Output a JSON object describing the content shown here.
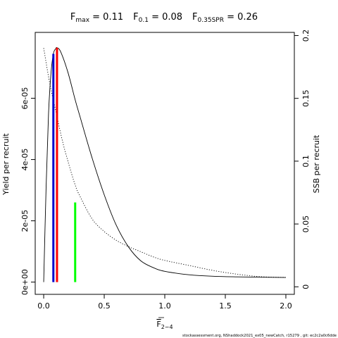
{
  "chart_data": {
    "type": "line",
    "title_parts": [
      {
        "base": "F",
        "sub": "max",
        "rest": " = 0.11"
      },
      {
        "base": "F",
        "sub": "0.1",
        "rest": " = 0.08"
      },
      {
        "base": "F",
        "sub": "0.35SPR",
        "rest": " = 0.26"
      }
    ],
    "xlabel": {
      "base": "F",
      "sub": "2−4",
      "overline": true
    },
    "ylabel_left": "Yield per recruit",
    "ylabel_right": "SSB per recruit",
    "xlim": [
      -0.07,
      2.07
    ],
    "ylim_left": [
      -4e-06,
      8.15e-05
    ],
    "ylim_right": [
      -0.006,
      0.2025
    ],
    "x_ticks": [
      0,
      0.5,
      1,
      1.5,
      2
    ],
    "x_tick_labels": [
      "0.0",
      "0.5",
      "1.0",
      "1.5",
      "2.0"
    ],
    "y_left_ticks": [
      0,
      2e-05,
      4e-05,
      6e-05
    ],
    "y_left_tick_labels": [
      "0e+00",
      "2e-05",
      "4e-05",
      "6e-05"
    ],
    "y_right_ticks": [
      0,
      0.05,
      0.1,
      0.15,
      0.2
    ],
    "y_right_tick_labels": [
      "0",
      "0.05",
      "0.1",
      "0.15",
      "0.2"
    ],
    "series": [
      {
        "axis": "left",
        "style": "solid",
        "color": "#000000",
        "x": [
          0,
          0.02,
          0.04,
          0.06,
          0.08,
          0.1,
          0.11,
          0.14,
          0.2,
          0.26,
          0.3,
          0.4,
          0.5,
          0.6,
          0.7,
          0.8,
          0.9,
          1.0,
          1.2,
          1.4,
          1.6,
          1.8,
          2.0
        ],
        "values": [
          0,
          3.1e-05,
          5.5e-05,
          6.8e-05,
          7.45e-05,
          7.62e-05,
          7.65e-05,
          7.52e-05,
          6.85e-05,
          5.95e-05,
          5.4e-05,
          4.05e-05,
          2.85e-05,
          1.85e-05,
          1.15e-05,
          7e-06,
          4.8e-06,
          3.5e-06,
          2.4e-06,
          1.9e-06,
          1.7e-06,
          1.6e-06,
          1.5e-06
        ]
      },
      {
        "axis": "right",
        "style": "dotted",
        "color": "#000000",
        "x": [
          0,
          0.05,
          0.1,
          0.15,
          0.2,
          0.26,
          0.3,
          0.4,
          0.5,
          0.6,
          0.7,
          0.8,
          0.9,
          1.0,
          1.2,
          1.4,
          1.6,
          1.8,
          2.0
        ],
        "values": [
          0.19,
          0.162,
          0.14,
          0.118,
          0.1,
          0.081,
          0.072,
          0.054,
          0.044,
          0.037,
          0.032,
          0.028,
          0.024,
          0.021,
          0.017,
          0.013,
          0.01,
          0.008,
          0.0075
        ]
      }
    ],
    "reference_lines": [
      {
        "name": "F0.1",
        "x": 0.08,
        "y": 7.45e-05,
        "color": "#0000cd"
      },
      {
        "name": "Fmax",
        "x": 0.11,
        "y": 7.65e-05,
        "color": "#ff0000"
      },
      {
        "name": "F0.35SPR",
        "x": 0.26,
        "y": 2.6e-05,
        "color": "#00ff00"
      }
    ],
    "footnote": "stockassessment.org, NShaddock2021_ex05_newCatch, r15279 , git: ec2c2a0c6dde"
  }
}
